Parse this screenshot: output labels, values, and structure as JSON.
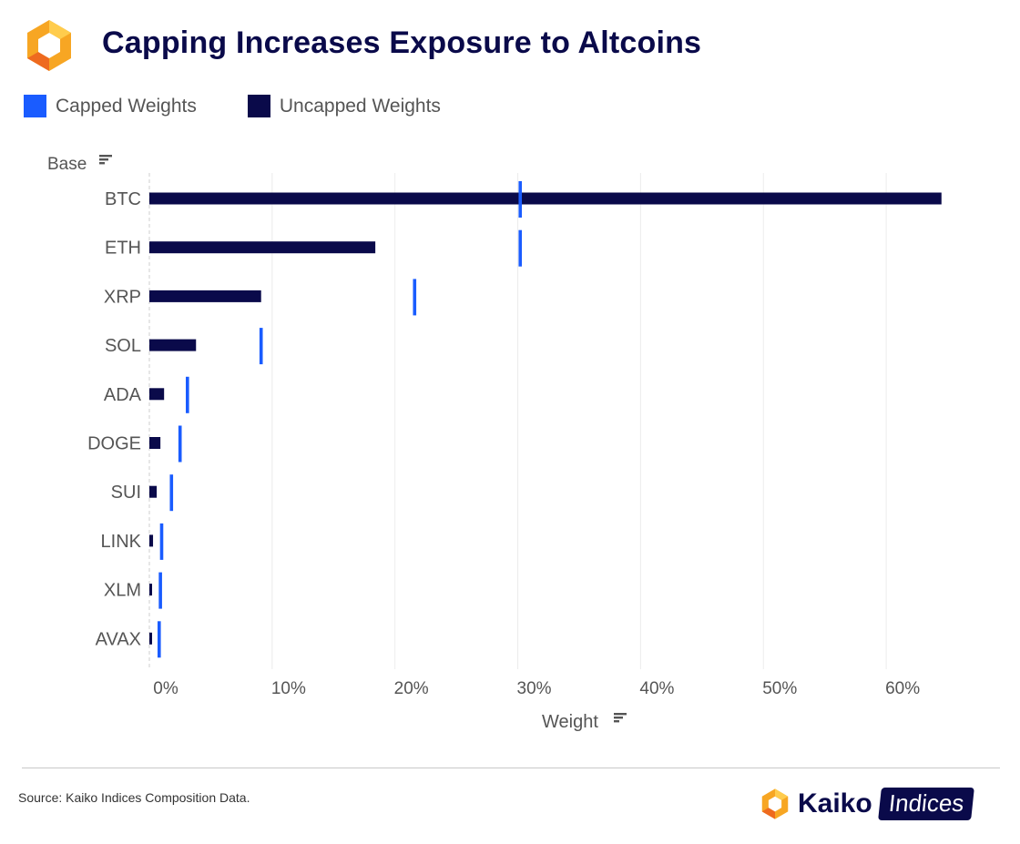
{
  "header": {
    "title": "Capping Increases Exposure to Altcoins",
    "logo_icon": "kaiko-hexagon-logo-icon"
  },
  "legend": [
    {
      "label": "Capped Weights",
      "color": "#1a5cff"
    },
    {
      "label": "Uncapped Weights",
      "color": "#0a0a4a"
    }
  ],
  "chart_data": {
    "type": "bar",
    "orientation": "horizontal",
    "title": "Capping Increases Exposure to Altcoins",
    "ylabel": "Base",
    "xlabel": "Weight",
    "categories": [
      "BTC",
      "ETH",
      "XRP",
      "SOL",
      "ADA",
      "DOGE",
      "SUI",
      "LINK",
      "XLM",
      "AVAX"
    ],
    "series": [
      {
        "name": "Uncapped Weights",
        "mark": "bar",
        "color": "#0a0a4a",
        "values": [
          64.5,
          18.4,
          9.1,
          3.8,
          1.2,
          0.9,
          0.6,
          0.3,
          0.2,
          0.2
        ]
      },
      {
        "name": "Capped Weights",
        "mark": "tick",
        "color": "#1a5cff",
        "values": [
          30.2,
          30.2,
          21.6,
          9.1,
          3.1,
          2.5,
          1.8,
          1.0,
          0.9,
          0.8
        ]
      }
    ],
    "xlim": [
      0,
      66
    ],
    "xticks": [
      0,
      10,
      20,
      30,
      40,
      50,
      60
    ],
    "xtick_labels": [
      "0%",
      "10%",
      "20%",
      "30%",
      "40%",
      "50%",
      "60%"
    ],
    "grid": "vertical",
    "sort_icon": "sort-descending-icon"
  },
  "footer": {
    "source": "Source: Kaiko Indices Composition Data.",
    "brand_name": "Kaiko",
    "brand_badge": "Indices"
  }
}
